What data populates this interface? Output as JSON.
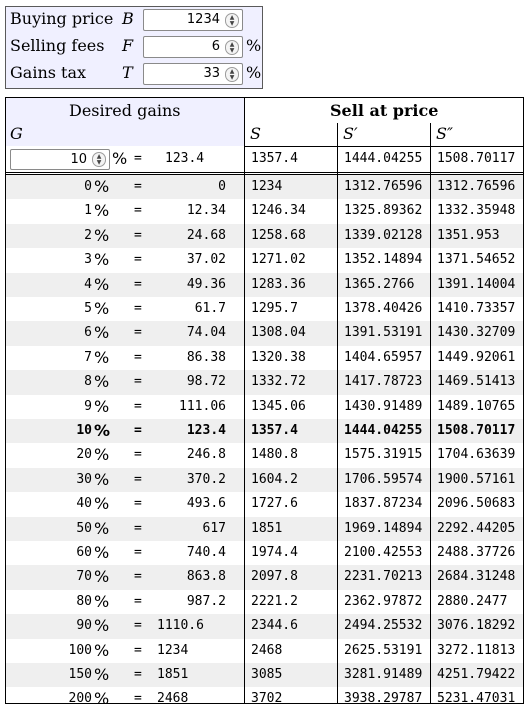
{
  "inputs": {
    "buying_price": {
      "label": "Buying price",
      "symbol": "B",
      "value": "1234",
      "unit": ""
    },
    "selling_fees": {
      "label": "Selling fees",
      "symbol": "F",
      "value": "6",
      "unit": "%"
    },
    "gains_tax": {
      "label": "Gains tax",
      "symbol": "T",
      "value": "33",
      "unit": "%"
    }
  },
  "table": {
    "desired_gains_title": "Desired gains",
    "sell_at_price_title": "Sell at price",
    "col_g": "G",
    "col_s": "S",
    "col_s1": "S′",
    "col_s2": "S″",
    "pct": "%",
    "eq": "=",
    "desired": {
      "value": "10",
      "gain": "123.4",
      "s": "1357.4",
      "s1": "1444.04255",
      "s2": "1508.70117"
    },
    "rows": [
      {
        "g": "0",
        "gain": "0",
        "s": "1234",
        "s1": "1312.76596",
        "s2": "1312.76596"
      },
      {
        "g": "1",
        "gain": "12.34",
        "s": "1246.34",
        "s1": "1325.89362",
        "s2": "1332.35948"
      },
      {
        "g": "2",
        "gain": "24.68",
        "s": "1258.68",
        "s1": "1339.02128",
        "s2": "1351.953"
      },
      {
        "g": "3",
        "gain": "37.02",
        "s": "1271.02",
        "s1": "1352.14894",
        "s2": "1371.54652"
      },
      {
        "g": "4",
        "gain": "49.36",
        "s": "1283.36",
        "s1": "1365.2766",
        "s2": "1391.14004"
      },
      {
        "g": "5",
        "gain": "61.7",
        "s": "1295.7",
        "s1": "1378.40426",
        "s2": "1410.73357"
      },
      {
        "g": "6",
        "gain": "74.04",
        "s": "1308.04",
        "s1": "1391.53191",
        "s2": "1430.32709"
      },
      {
        "g": "7",
        "gain": "86.38",
        "s": "1320.38",
        "s1": "1404.65957",
        "s2": "1449.92061"
      },
      {
        "g": "8",
        "gain": "98.72",
        "s": "1332.72",
        "s1": "1417.78723",
        "s2": "1469.51413"
      },
      {
        "g": "9",
        "gain": "111.06",
        "s": "1345.06",
        "s1": "1430.91489",
        "s2": "1489.10765"
      },
      {
        "g": "10",
        "gain": "123.4",
        "s": "1357.4",
        "s1": "1444.04255",
        "s2": "1508.70117"
      },
      {
        "g": "20",
        "gain": "246.8",
        "s": "1480.8",
        "s1": "1575.31915",
        "s2": "1704.63639"
      },
      {
        "g": "30",
        "gain": "370.2",
        "s": "1604.2",
        "s1": "1706.59574",
        "s2": "1900.57161"
      },
      {
        "g": "40",
        "gain": "493.6",
        "s": "1727.6",
        "s1": "1837.87234",
        "s2": "2096.50683"
      },
      {
        "g": "50",
        "gain": "617",
        "s": "1851",
        "s1": "1969.14894",
        "s2": "2292.44205"
      },
      {
        "g": "60",
        "gain": "740.4",
        "s": "1974.4",
        "s1": "2100.42553",
        "s2": "2488.37726"
      },
      {
        "g": "70",
        "gain": "863.8",
        "s": "2097.8",
        "s1": "2231.70213",
        "s2": "2684.31248"
      },
      {
        "g": "80",
        "gain": "987.2",
        "s": "2221.2",
        "s1": "2362.97872",
        "s2": "2880.2477"
      },
      {
        "g": "90",
        "gain": "1110.6",
        "s": "2344.6",
        "s1": "2494.25532",
        "s2": "3076.18292"
      },
      {
        "g": "100",
        "gain": "1234",
        "s": "2468",
        "s1": "2625.53191",
        "s2": "3272.11813"
      },
      {
        "g": "150",
        "gain": "1851",
        "s": "3085",
        "s1": "3281.91489",
        "s2": "4251.79422"
      },
      {
        "g": "200",
        "gain": "2468",
        "s": "3702",
        "s1": "3938.29787",
        "s2": "5231.47031"
      }
    ]
  }
}
